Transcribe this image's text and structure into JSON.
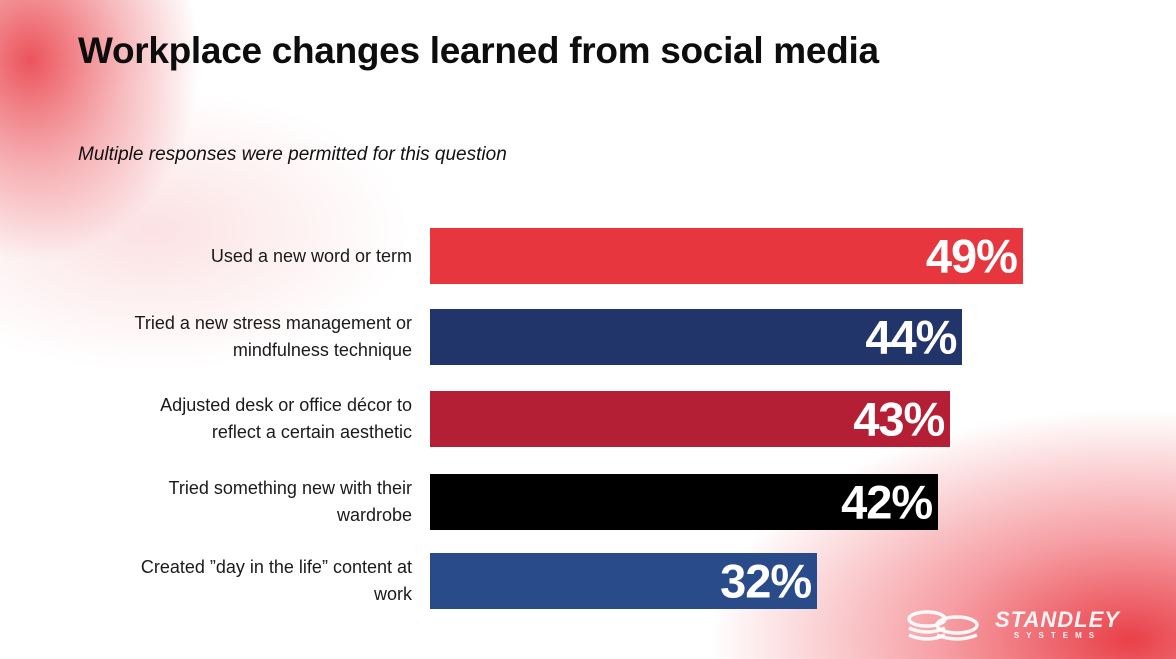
{
  "chart_data": {
    "type": "bar",
    "orientation": "horizontal",
    "title": "Workplace changes learned from social media",
    "subtitle": "Multiple responses were permitted for this question",
    "xlabel": "",
    "ylabel": "",
    "xlim": [
      0,
      100
    ],
    "grid": false,
    "legend": "none",
    "categories": [
      "Used a new word or term",
      "Tried a new stress management or mindfulness technique",
      "Adjusted desk or office décor to reflect a certain aesthetic",
      "Tried something new with their wardrobe",
      "Created ”day in the life” content at work"
    ],
    "values": [
      49,
      44,
      43,
      42,
      32
    ],
    "value_labels": [
      "49%",
      "44%",
      "43%",
      "42%",
      "32%"
    ],
    "colors": [
      "#E8363F",
      "#22356A",
      "#B51F35",
      "#000000",
      "#2A4B8A"
    ]
  },
  "labels_lines": [
    [
      "Used a new word or term"
    ],
    [
      "Tried a new stress management or",
      "mindfulness technique"
    ],
    [
      "Adjusted desk or office décor to",
      "reflect a certain aesthetic"
    ],
    [
      "Tried something new with their",
      "wardrobe"
    ],
    [
      "Created ”day in the life” content at",
      "work"
    ]
  ],
  "logo": {
    "name": "STANDLEY",
    "sub": "SYSTEMS"
  }
}
